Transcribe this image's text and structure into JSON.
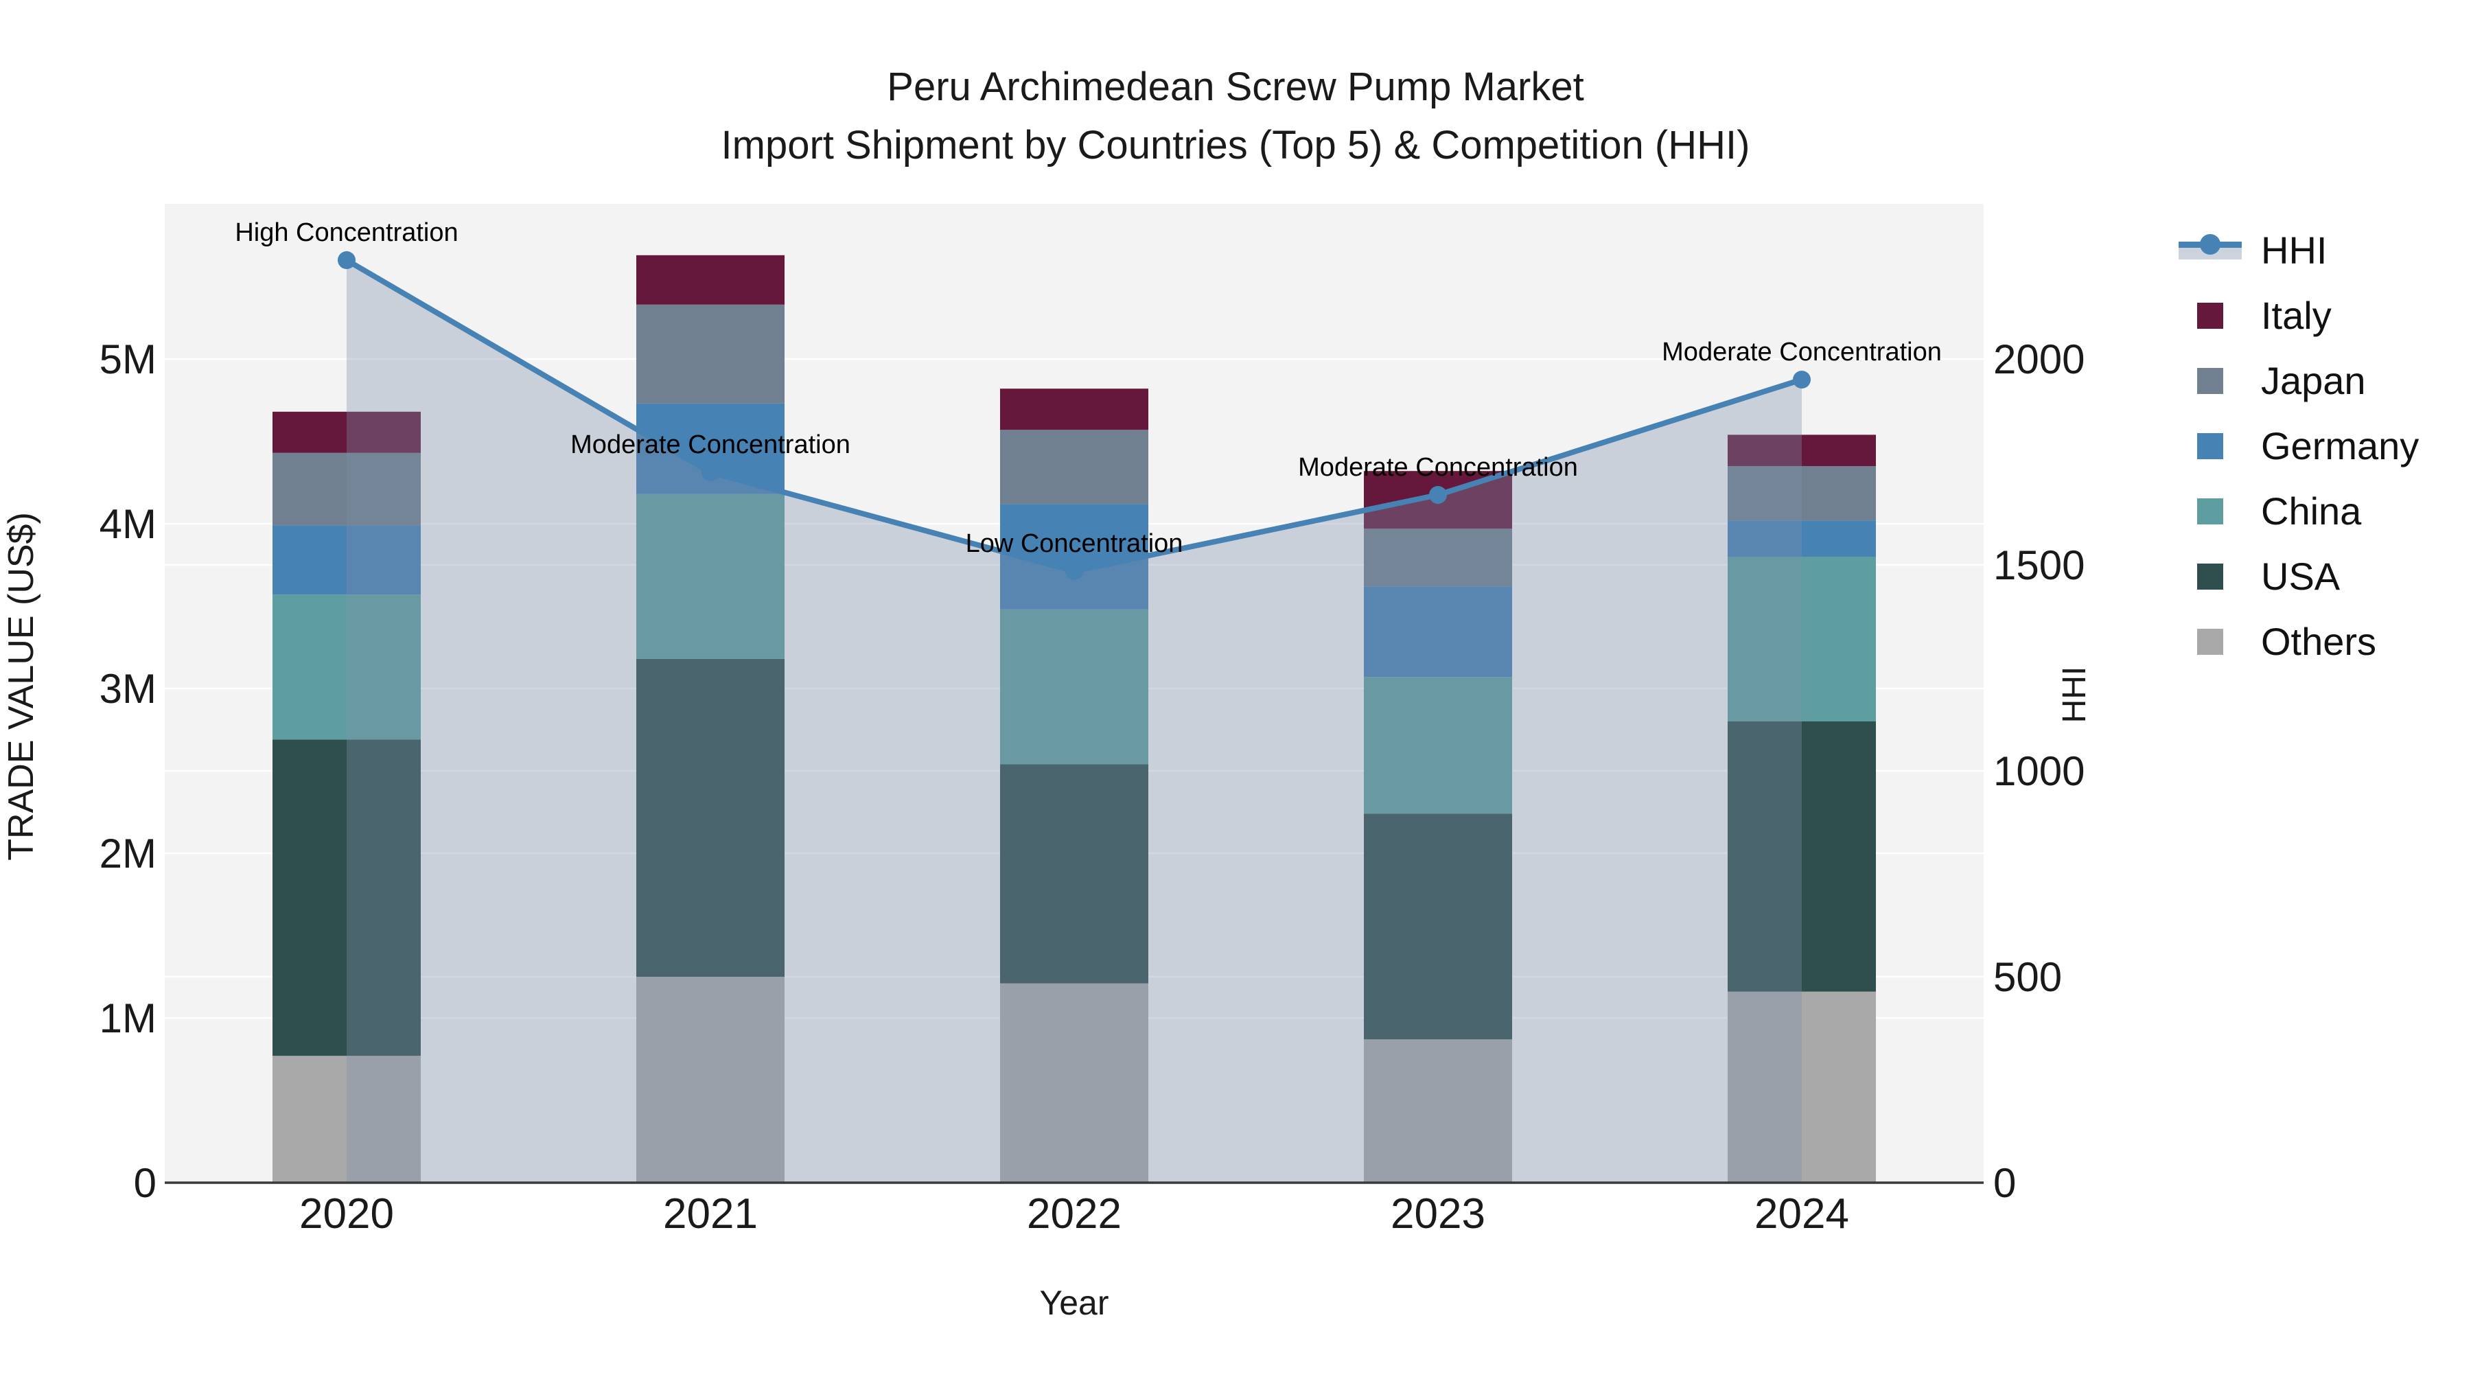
{
  "title": {
    "line1": "Peru Archimedean Screw Pump Market",
    "line2": "Import Shipment by Countries (Top 5) & Competition (HHI)"
  },
  "axes": {
    "x_title": "Year",
    "y_left_title": "TRADE VALUE (US$)",
    "y_right_title": "HHI",
    "y_left_ticks": [
      "0",
      "1M",
      "2M",
      "3M",
      "4M",
      "5M"
    ],
    "y_right_ticks": [
      "0",
      "500",
      "1000",
      "1500",
      "2000"
    ]
  },
  "legend": {
    "items": [
      {
        "label": "HHI",
        "type": "line",
        "color": "#4682B4"
      },
      {
        "label": "Italy",
        "type": "patch",
        "color": "#65173C"
      },
      {
        "label": "Japan",
        "type": "patch",
        "color": "#708090"
      },
      {
        "label": "Germany",
        "type": "patch",
        "color": "#4682B4"
      },
      {
        "label": "China",
        "type": "patch",
        "color": "#5F9EA0"
      },
      {
        "label": "USA",
        "type": "patch",
        "color": "#2F4F4F"
      },
      {
        "label": "Others",
        "type": "patch",
        "color": "#A9A9A9"
      }
    ]
  },
  "chart_data": {
    "type": "bar",
    "subtype": "stacked-bars-with-line-overlay",
    "title": "Peru Archimedean Screw Pump Market - Import Shipment by Countries (Top 5) & Competition (HHI)",
    "categories": [
      "2020",
      "2021",
      "2022",
      "2023",
      "2024"
    ],
    "unit": "US$ millions",
    "stack_order_bottom_to_top": [
      "Others",
      "USA",
      "China",
      "Germany",
      "Japan",
      "Italy"
    ],
    "series": [
      {
        "name": "Others",
        "color": "#A9A9A9",
        "values": [
          0.77,
          1.25,
          1.21,
          0.87,
          1.16
        ]
      },
      {
        "name": "USA",
        "color": "#2F4F4F",
        "values": [
          1.92,
          1.93,
          1.33,
          1.37,
          1.64
        ]
      },
      {
        "name": "China",
        "color": "#5F9EA0",
        "values": [
          0.88,
          1.0,
          0.94,
          0.83,
          1.0
        ]
      },
      {
        "name": "Germany",
        "color": "#4682B4",
        "values": [
          0.42,
          0.55,
          0.64,
          0.55,
          0.22
        ]
      },
      {
        "name": "Japan",
        "color": "#708090",
        "values": [
          0.44,
          0.6,
          0.45,
          0.35,
          0.33
        ]
      },
      {
        "name": "Italy",
        "color": "#65173C",
        "values": [
          0.25,
          0.3,
          0.25,
          0.35,
          0.19
        ]
      }
    ],
    "bar_totals": [
      4.68,
      5.63,
      4.82,
      4.32,
      4.54
    ],
    "line_series": {
      "name": "HHI",
      "axis": "right",
      "color": "#4682B4",
      "area_fill": "rgba(125,142,170,0.35)",
      "values": [
        2240,
        1725,
        1485,
        1670,
        1950
      ]
    },
    "annotations": [
      {
        "x": "2020",
        "text": "High Concentration"
      },
      {
        "x": "2021",
        "text": "Moderate Concentration"
      },
      {
        "x": "2022",
        "text": "Low Concentration"
      },
      {
        "x": "2023",
        "text": "Moderate Concentration"
      },
      {
        "x": "2024",
        "text": "Moderate Concentration"
      }
    ],
    "xlabel": "Year",
    "ylabel_left": "TRADE VALUE (US$)",
    "ylabel_right": "HHI",
    "ylim_left": [
      0,
      5.94
    ],
    "ylim_right": [
      0,
      2380
    ],
    "grid": true,
    "legend_position": "right-outside",
    "plot_background": "#f3f3f4"
  }
}
